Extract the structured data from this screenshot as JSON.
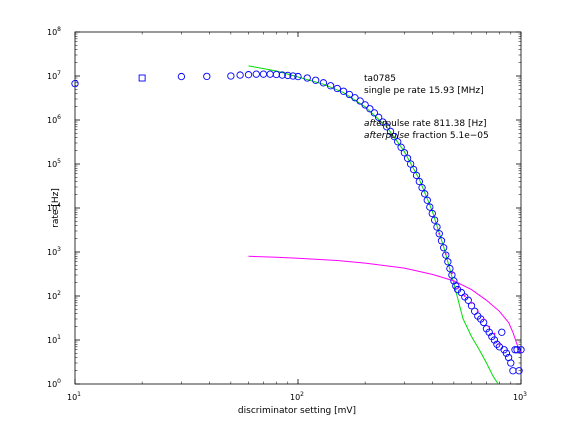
{
  "chart_data": {
    "type": "scatter",
    "xscale": "log",
    "yscale": "log",
    "xlim": [
      10,
      1000
    ],
    "ylim": [
      1,
      100000000
    ],
    "xlabel": "discriminator setting [mV]",
    "ylabel": "rate [Hz]",
    "grid": false,
    "x_ticks": [
      {
        "base": "10",
        "exp": "1",
        "value": 10
      },
      {
        "base": "10",
        "exp": "2",
        "value": 100
      },
      {
        "base": "10",
        "exp": "3",
        "value": 1000
      }
    ],
    "y_ticks": [
      {
        "base": "10",
        "exp": "0",
        "value": 1
      },
      {
        "base": "10",
        "exp": "1",
        "value": 10
      },
      {
        "base": "10",
        "exp": "2",
        "value": 100
      },
      {
        "base": "10",
        "exp": "3",
        "value": 1000
      },
      {
        "base": "10",
        "exp": "4",
        "value": 10000
      },
      {
        "base": "10",
        "exp": "5",
        "value": 100000
      },
      {
        "base": "10",
        "exp": "6",
        "value": 1000000
      },
      {
        "base": "10",
        "exp": "7",
        "value": 10000000
      },
      {
        "base": "10",
        "exp": "8",
        "value": 100000000
      }
    ],
    "annotations": {
      "id": "ta0785",
      "single_pe_rate": "single pe rate 15.93 [MHz]",
      "afterpulse_rate_prefix": "after",
      "afterpulse_rate_rest": "pulse rate 811.38 [Hz]",
      "afterpulse_fraction_prefix": "afterpulse",
      "afterpulse_fraction_rest": " fraction 5.1e−05"
    },
    "series": [
      {
        "marker": "square",
        "color": "#0000ff",
        "points": [
          [
            20,
            9000000
          ]
        ]
      },
      {
        "marker": "circle",
        "color": "#0000ff",
        "points": [
          [
            10,
            6700000
          ],
          [
            30,
            9700000
          ],
          [
            39,
            9800000
          ],
          [
            50,
            10000000
          ],
          [
            55,
            10500000
          ],
          [
            60,
            10700000
          ],
          [
            65,
            11000000
          ],
          [
            70,
            11000000
          ],
          [
            75,
            11000000
          ],
          [
            80,
            10800000
          ],
          [
            85,
            10500000
          ],
          [
            90,
            10300000
          ],
          [
            95,
            10000000
          ],
          [
            100,
            9700000
          ],
          [
            110,
            9000000
          ],
          [
            120,
            8000000
          ],
          [
            130,
            7000000
          ],
          [
            140,
            6000000
          ],
          [
            150,
            5200000
          ],
          [
            160,
            4500000
          ],
          [
            170,
            3800000
          ],
          [
            180,
            3200000
          ],
          [
            190,
            2700000
          ],
          [
            200,
            2200000
          ],
          [
            210,
            1800000
          ],
          [
            220,
            1450000
          ],
          [
            230,
            1150000
          ],
          [
            240,
            900000
          ],
          [
            250,
            700000
          ],
          [
            260,
            550000
          ],
          [
            270,
            420000
          ],
          [
            280,
            320000
          ],
          [
            290,
            240000
          ],
          [
            300,
            180000
          ],
          [
            310,
            135000
          ],
          [
            320,
            100000
          ],
          [
            330,
            75000
          ],
          [
            340,
            55000
          ],
          [
            350,
            40000
          ],
          [
            360,
            29000
          ],
          [
            370,
            21000
          ],
          [
            380,
            15000
          ],
          [
            390,
            10500
          ],
          [
            400,
            7500
          ],
          [
            410,
            5300
          ],
          [
            420,
            3700
          ],
          [
            430,
            2600
          ],
          [
            440,
            1800
          ],
          [
            450,
            1250
          ],
          [
            460,
            850
          ],
          [
            470,
            600
          ],
          [
            480,
            420
          ],
          [
            490,
            300
          ],
          [
            500,
            220
          ],
          [
            510,
            170
          ],
          [
            520,
            140
          ],
          [
            540,
            120
          ],
          [
            560,
            95
          ],
          [
            580,
            80
          ],
          [
            600,
            60
          ],
          [
            620,
            45
          ],
          [
            640,
            35
          ],
          [
            660,
            30
          ],
          [
            680,
            25
          ],
          [
            700,
            18
          ],
          [
            720,
            15
          ],
          [
            740,
            12
          ],
          [
            760,
            10
          ],
          [
            780,
            8
          ],
          [
            800,
            7
          ],
          [
            820,
            15
          ],
          [
            840,
            6
          ],
          [
            860,
            5
          ],
          [
            880,
            4
          ],
          [
            900,
            3
          ],
          [
            920,
            2
          ],
          [
            940,
            6
          ],
          [
            960,
            6
          ],
          [
            980,
            2
          ],
          [
            1000,
            6
          ]
        ]
      },
      {
        "marker": "dot",
        "color": "#ff00ff",
        "points": [
          [
            430,
            2600
          ],
          [
            460,
            900
          ],
          [
            490,
            330
          ],
          [
            520,
            150
          ],
          [
            560,
            100
          ],
          [
            600,
            70
          ],
          [
            640,
            45
          ],
          [
            680,
            30
          ],
          [
            720,
            20
          ],
          [
            760,
            14
          ],
          [
            800,
            8
          ]
        ]
      },
      {
        "marker": "line",
        "color": "#00dd00",
        "points": [
          [
            60,
            17000000
          ],
          [
            80,
            13000000
          ],
          [
            100,
            9500000
          ],
          [
            130,
            6500000
          ],
          [
            160,
            4200000
          ],
          [
            200,
            2000000
          ],
          [
            250,
            700000
          ],
          [
            300,
            190000
          ],
          [
            350,
            45000
          ],
          [
            400,
            8500
          ],
          [
            450,
            1300
          ],
          [
            500,
            190
          ],
          [
            550,
            30
          ],
          [
            600,
            12
          ],
          [
            650,
            6
          ],
          [
            700,
            3
          ],
          [
            750,
            1.5
          ],
          [
            790,
            1
          ]
        ]
      },
      {
        "marker": "line",
        "color": "#ff00ff",
        "points": [
          [
            60,
            800
          ],
          [
            80,
            760
          ],
          [
            100,
            720
          ],
          [
            150,
            640
          ],
          [
            200,
            560
          ],
          [
            300,
            430
          ],
          [
            400,
            310
          ],
          [
            500,
            220
          ],
          [
            600,
            140
          ],
          [
            700,
            80
          ],
          [
            800,
            45
          ],
          [
            880,
            25
          ],
          [
            920,
            15
          ],
          [
            960,
            8
          ],
          [
            1000,
            5
          ]
        ]
      }
    ]
  }
}
